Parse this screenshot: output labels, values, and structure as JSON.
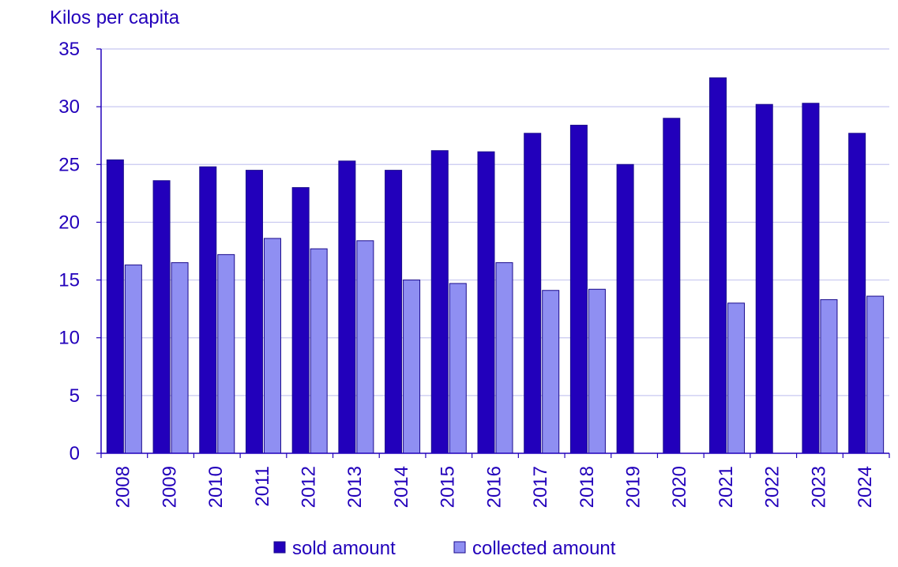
{
  "chart_data": {
    "type": "bar",
    "ylabel": "Kilos per capita",
    "ylim": [
      0,
      35
    ],
    "yticks": [
      0,
      5,
      10,
      15,
      20,
      25,
      30,
      35
    ],
    "grid": true,
    "legend_position": "bottom",
    "categories": [
      "2008",
      "2009",
      "2010",
      "2011",
      "2012",
      "2013",
      "2014",
      "2015",
      "2016",
      "2017",
      "2018",
      "2019",
      "2020",
      "2021",
      "2022",
      "2023",
      "2024"
    ],
    "series": [
      {
        "name": "sold amount",
        "color": "#2200bb",
        "values": [
          25.4,
          23.6,
          24.8,
          24.5,
          23.0,
          25.3,
          24.5,
          26.2,
          26.1,
          27.7,
          28.4,
          25.0,
          29.0,
          32.5,
          30.2,
          30.3,
          27.7
        ]
      },
      {
        "name": "collected amount",
        "color": "#8f8ff2",
        "values": [
          16.3,
          16.5,
          17.2,
          18.6,
          17.7,
          18.4,
          15.0,
          14.7,
          16.5,
          14.1,
          14.2,
          null,
          null,
          13.0,
          null,
          13.3,
          13.6
        ]
      }
    ]
  }
}
